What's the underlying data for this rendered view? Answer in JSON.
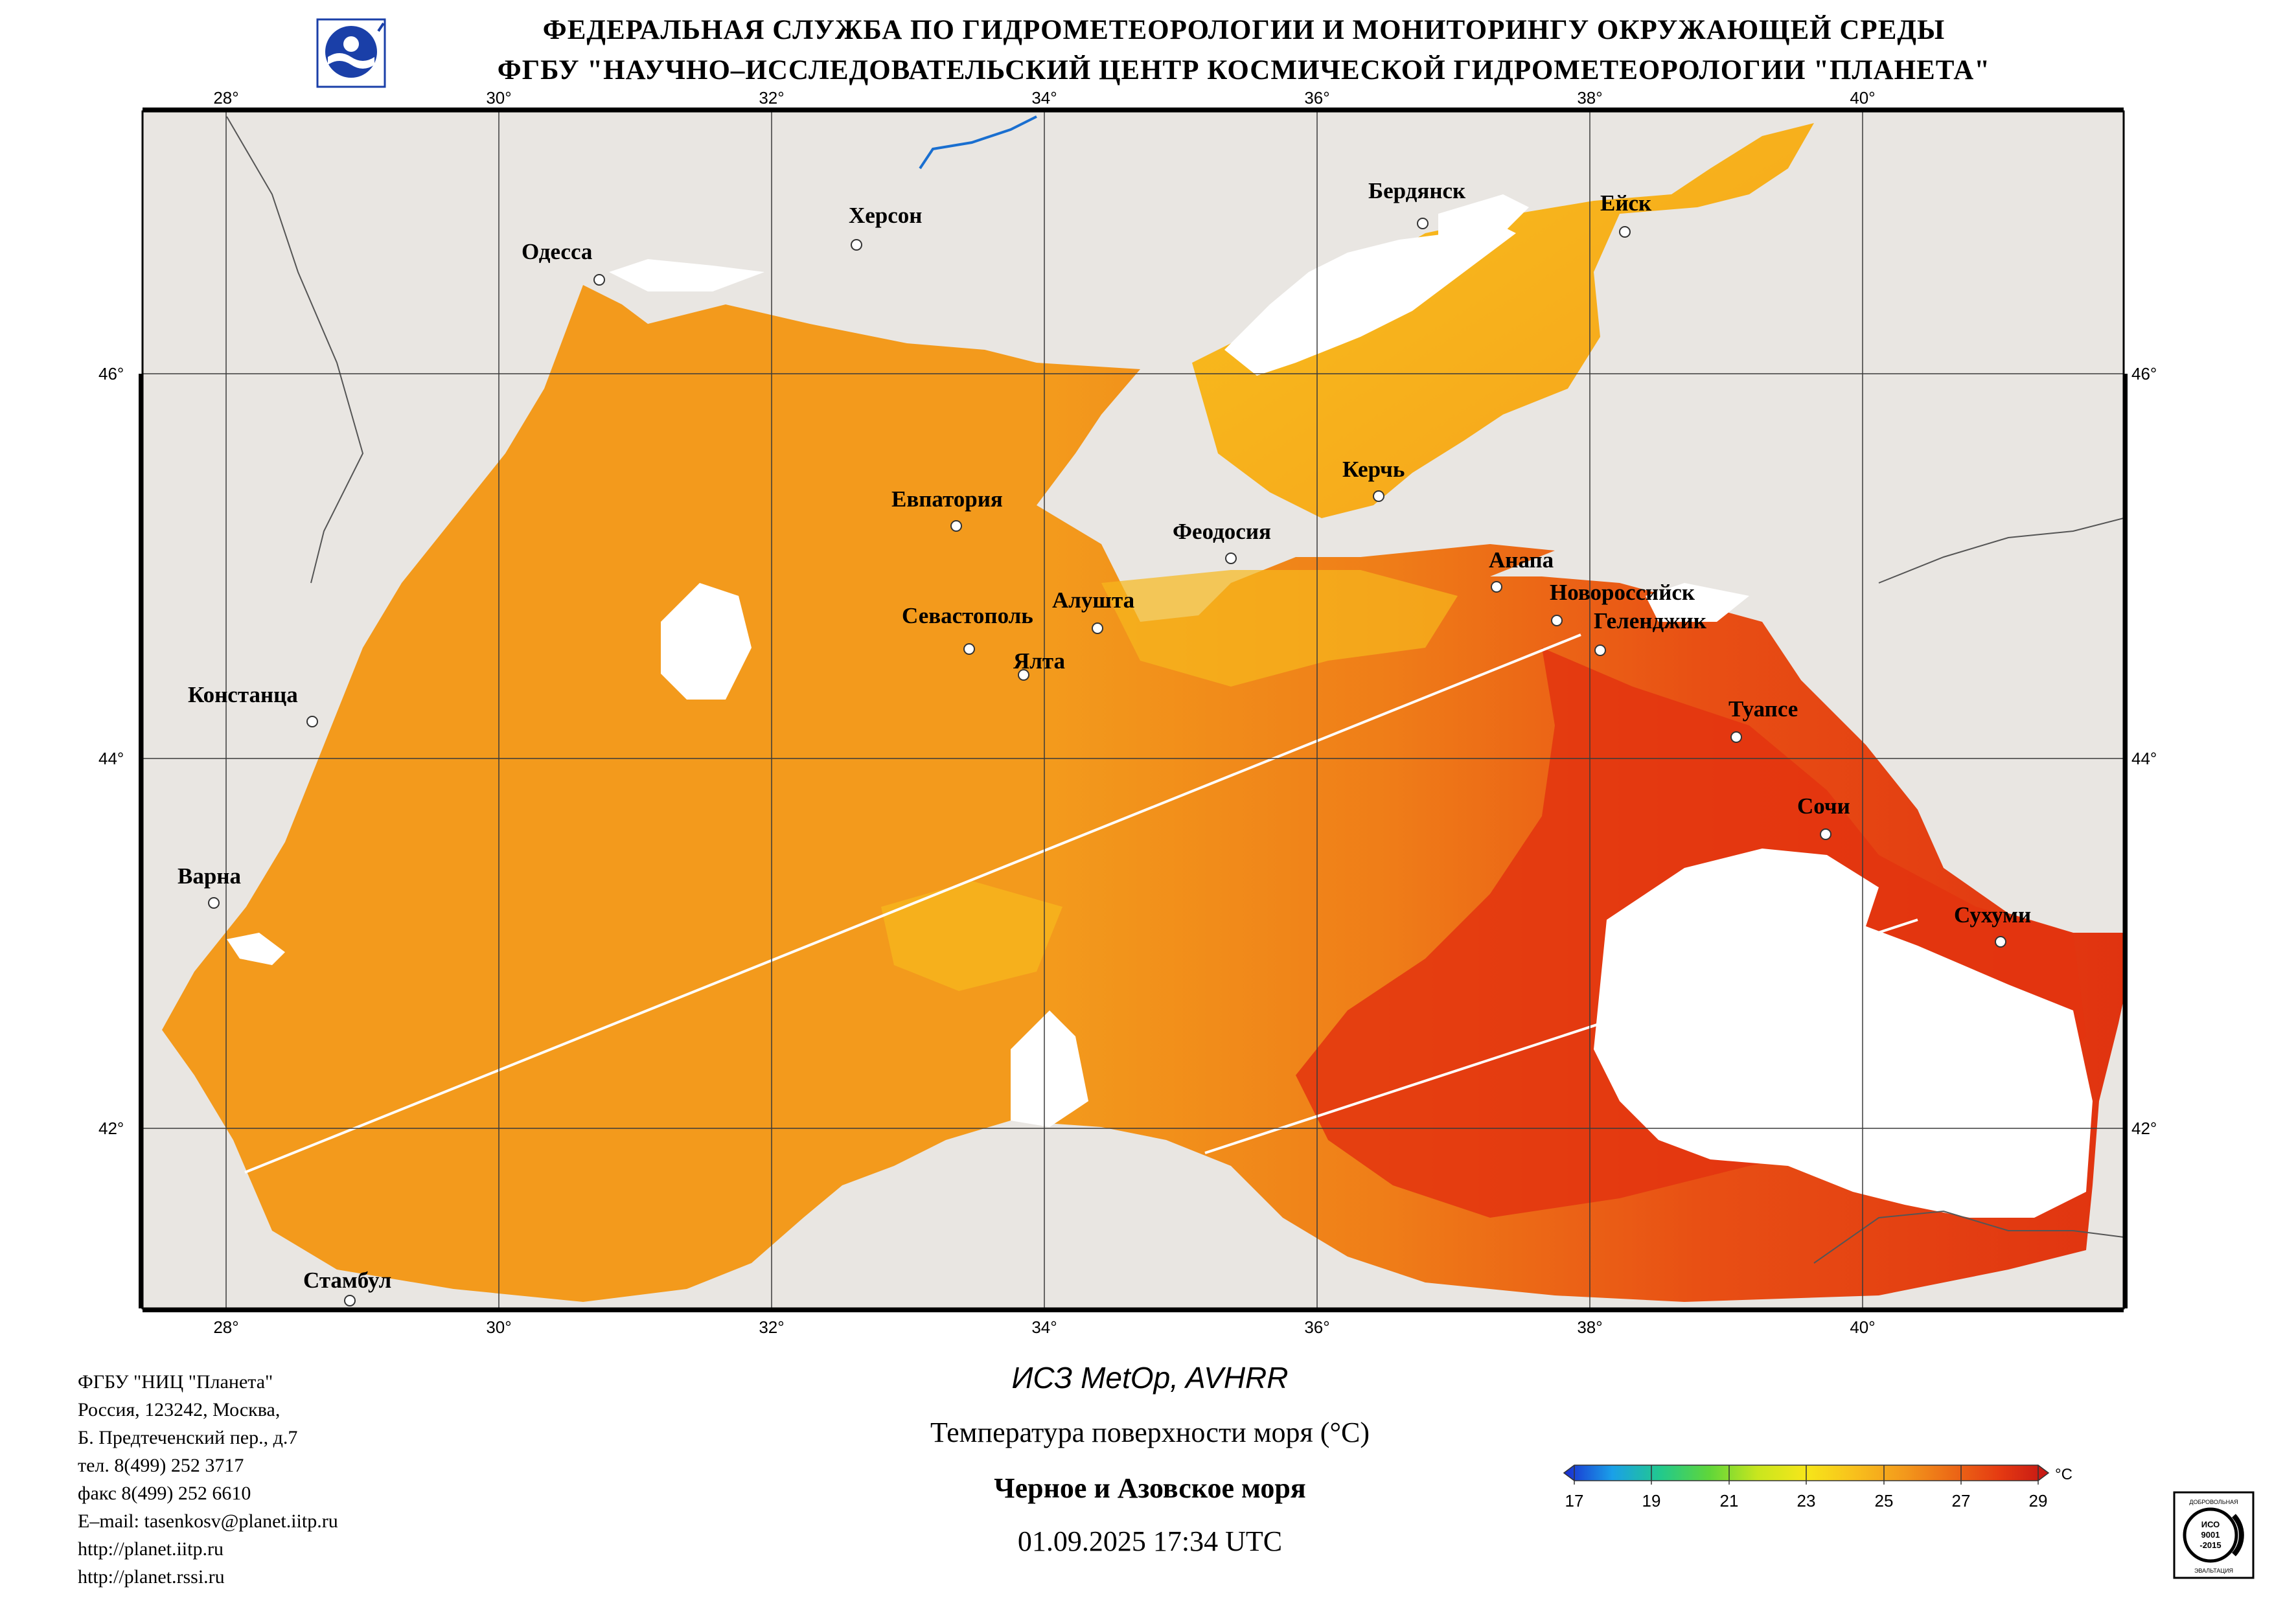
{
  "header": {
    "line1": "ФЕДЕРАЛЬНАЯ СЛУЖБА ПО ГИДРОМЕТЕОРОЛОГИИ И МОНИТОРИНГУ ОКРУЖАЮЩЕЙ СРЕДЫ",
    "line2": "ФГБУ \"НАУЧНО–ИССЛЕДОВАТЕЛЬСКИЙ ЦЕНТР КОСМИЧЕСКОЙ ГИДРОМЕТЕОРОЛОГИИ \"ПЛАНЕТА\"",
    "logo_icon": "roshydromet-logo"
  },
  "map": {
    "lon_labels": [
      "28°",
      "30°",
      "32°",
      "34°",
      "36°",
      "38°",
      "40°"
    ],
    "lat_labels": [
      "46°",
      "44°",
      "42°"
    ],
    "cities": [
      {
        "name": "Одесса"
      },
      {
        "name": "Херсон"
      },
      {
        "name": "Бердянск"
      },
      {
        "name": "Ейск"
      },
      {
        "name": "Керчь"
      },
      {
        "name": "Евпатория"
      },
      {
        "name": "Феодосия"
      },
      {
        "name": "Анапа"
      },
      {
        "name": "Новороссийск"
      },
      {
        "name": "Геленджик"
      },
      {
        "name": "Севастополь"
      },
      {
        "name": "Алушта"
      },
      {
        "name": "Ялта"
      },
      {
        "name": "Констанца"
      },
      {
        "name": "Туапсе"
      },
      {
        "name": "Сочи"
      },
      {
        "name": "Варна"
      },
      {
        "name": "Сухуми"
      },
      {
        "name": "Стамбул"
      }
    ],
    "colors": {
      "land": "#e9e6e2",
      "sea_warm": "#f39a1c",
      "sea_hot": "#e53a12",
      "cloud": "#ffffff",
      "grid": "#3a3a3a"
    }
  },
  "footer": {
    "org_lines": [
      "ФГБУ \"НИЦ \"Планета\"",
      "Россия, 123242, Москва,",
      "Б. Предтеченский пер., д.7",
      "тел. 8(499) 252 3717",
      "факс 8(499) 252 6610",
      "E–mail: tasenkosv@planet.iitp.ru",
      "http://planet.iitp.ru",
      "http://planet.rssi.ru"
    ],
    "satellite": "ИСЗ MetOp, AVHRR",
    "parameter": "Температура поверхности моря (°С)",
    "region": "Черное и Азовское моря",
    "datetime": "01.09.2025 17:34 UTC"
  },
  "colorbar": {
    "unit": "°С",
    "tick_labels": [
      "17",
      "19",
      "21",
      "23",
      "25",
      "27",
      "29"
    ],
    "min": 17,
    "max": 29,
    "stops": [
      "#1a2bd0",
      "#1aa0e8",
      "#22c98c",
      "#5fd63a",
      "#c9e61e",
      "#f6e61a",
      "#f8c01c",
      "#f39a1c",
      "#ec6a16",
      "#e53a12",
      "#c41614"
    ]
  },
  "certificate": {
    "top_text": "ДОБРОВОЛЬНАЯ",
    "mid_lines": [
      "ИСО",
      "9001",
      "-2015"
    ],
    "bottom_text": "ЭВАЛЬТАЦИЯ"
  }
}
